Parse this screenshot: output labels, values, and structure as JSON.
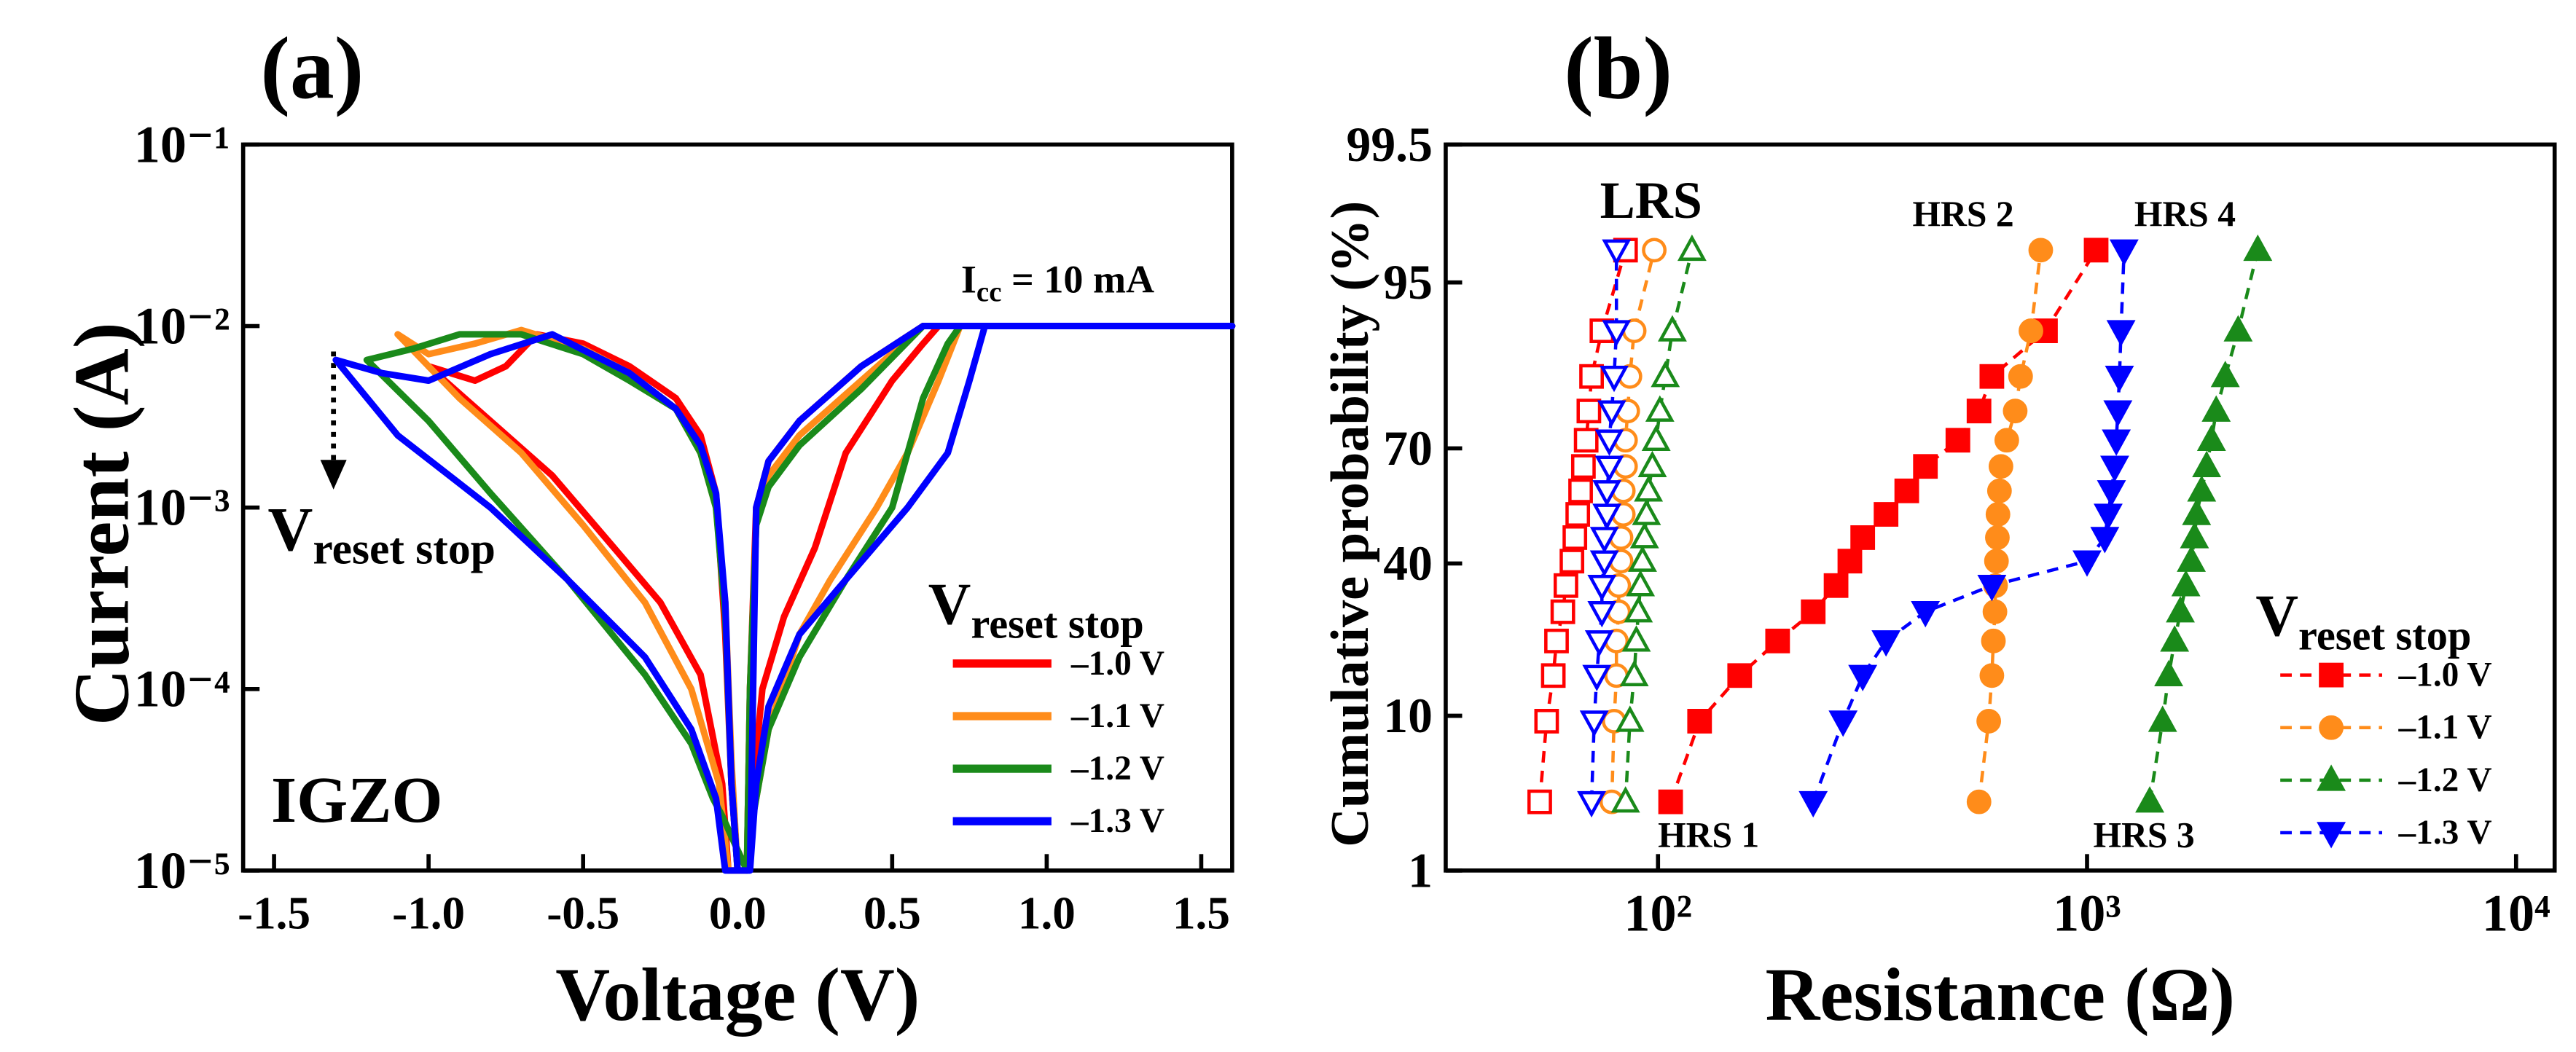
{
  "chart_data": [
    {
      "type": "line",
      "xlabel": "Voltage (V)",
      "ylabel": "Current (A)",
      "xscale": "linear",
      "yscale": "log",
      "xlim": [
        -1.6,
        1.6
      ],
      "xticks": [
        -1.5,
        {
          "value": -1,
          "label": "-1.0"
        },
        -0.5,
        {
          "value": 0,
          "label": "0.0"
        },
        0.5,
        {
          "value": 1,
          "label": "1.0"
        },
        1.5
      ],
      "ylim": [
        1e-05,
        0.1
      ],
      "yticks": [
        {
          "value": 1e-05,
          "label": "10⁻⁵"
        },
        {
          "value": 0.0001,
          "label": "10⁻⁴"
        },
        {
          "value": 0.001,
          "label": "10⁻³"
        },
        {
          "value": 0.01,
          "label": "10⁻²"
        },
        {
          "value": 0.1,
          "label": "10⁻¹"
        }
      ],
      "annotations": [
        {
          "text": "(a)"
        },
        {
          "text": "I",
          "sub": "cc",
          "tail": " = 10 mA"
        },
        {
          "text": "V",
          "sub": "reset stop"
        },
        {
          "text": "IGZO"
        }
      ],
      "legend_title": {
        "text": "V",
        "sub": "reset stop"
      },
      "legend_position": "lower right",
      "series": [
        {
          "name": "–1.0 V",
          "color": "#ff0000",
          "x": [
            0.0,
            -0.02,
            -0.04,
            -0.07,
            -0.12,
            -0.2,
            -0.35,
            -0.5,
            -0.65,
            -0.75,
            -0.85,
            -1.0,
            -0.8,
            -0.6,
            -0.4,
            -0.25,
            -0.12,
            -0.05,
            -0.03,
            0.03,
            0.05,
            0.08,
            0.15,
            0.25,
            0.35,
            0.5,
            0.6,
            0.65,
            1.6,
            0.6,
            0.4,
            0.2,
            0.1,
            0.06,
            0.04,
            0.03
          ],
          "values": [
            1e-05,
            3e-05,
            0.0002,
            0.0012,
            0.0025,
            0.004,
            0.006,
            0.008,
            0.009,
            0.006,
            0.005,
            0.006,
            0.003,
            0.0015,
            0.0006,
            0.0003,
            0.00012,
            3e-05,
            1e-05,
            1e-05,
            3e-05,
            0.0001,
            0.00025,
            0.0006,
            0.002,
            0.005,
            0.008,
            0.01,
            0.01,
            0.01,
            0.006,
            0.003,
            0.0018,
            0.001,
            0.0001,
            1e-05
          ]
        },
        {
          "name": "–1.1 V",
          "color": "#ff8c1a",
          "x": [
            0.0,
            -0.02,
            -0.04,
            -0.07,
            -0.12,
            -0.2,
            -0.35,
            -0.5,
            -0.7,
            -0.85,
            -1.0,
            -1.1,
            -0.9,
            -0.7,
            -0.5,
            -0.3,
            -0.15,
            -0.06,
            -0.03,
            0.03,
            0.05,
            0.1,
            0.2,
            0.3,
            0.45,
            0.55,
            0.65,
            0.72,
            1.6,
            0.6,
            0.4,
            0.2,
            0.1,
            0.06,
            0.04,
            0.03
          ],
          "values": [
            1e-05,
            4e-05,
            0.0003,
            0.001,
            0.002,
            0.0035,
            0.0055,
            0.0075,
            0.0095,
            0.008,
            0.007,
            0.009,
            0.004,
            0.002,
            0.0008,
            0.0003,
            0.0001,
            3e-05,
            1e-05,
            1e-05,
            2e-05,
            6e-05,
            0.0002,
            0.0004,
            0.001,
            0.002,
            0.005,
            0.01,
            0.01,
            0.01,
            0.005,
            0.0025,
            0.0015,
            0.0008,
            0.0001,
            1e-05
          ]
        },
        {
          "name": "–1.2 V",
          "color": "#1a8a1a",
          "x": [
            0.0,
            -0.02,
            -0.04,
            -0.07,
            -0.12,
            -0.2,
            -0.35,
            -0.5,
            -0.7,
            -0.9,
            -1.05,
            -1.2,
            -1.0,
            -0.8,
            -0.55,
            -0.3,
            -0.15,
            -0.08,
            -0.05,
            0.03,
            0.05,
            0.1,
            0.2,
            0.35,
            0.5,
            0.6,
            0.68,
            0.72,
            1.6,
            0.6,
            0.4,
            0.2,
            0.1,
            0.06,
            0.04,
            0.03
          ],
          "values": [
            1e-05,
            3e-05,
            0.00025,
            0.001,
            0.002,
            0.0035,
            0.005,
            0.007,
            0.009,
            0.009,
            0.0075,
            0.0065,
            0.003,
            0.0012,
            0.0004,
            0.00012,
            5e-05,
            2.5e-05,
            2e-05,
            1e-05,
            2e-05,
            6e-05,
            0.00015,
            0.0004,
            0.001,
            0.004,
            0.008,
            0.01,
            0.01,
            0.01,
            0.0045,
            0.0022,
            0.0013,
            0.0008,
            0.0001,
            1e-05
          ]
        },
        {
          "name": "–1.3 V",
          "color": "#0000ff",
          "x": [
            0.0,
            -0.02,
            -0.04,
            -0.07,
            -0.12,
            -0.2,
            -0.35,
            -0.6,
            -0.8,
            -1.0,
            -1.15,
            -1.3,
            -1.1,
            -0.8,
            -0.55,
            -0.3,
            -0.15,
            -0.07,
            -0.04,
            0.04,
            0.06,
            0.1,
            0.2,
            0.35,
            0.55,
            0.68,
            0.75,
            0.8,
            1.6,
            0.6,
            0.4,
            0.2,
            0.1,
            0.06,
            0.05,
            0.04
          ],
          "values": [
            1e-05,
            3e-05,
            0.0003,
            0.0012,
            0.0022,
            0.0035,
            0.0055,
            0.009,
            0.007,
            0.005,
            0.0055,
            0.0065,
            0.0025,
            0.001,
            0.0004,
            0.00015,
            6e-05,
            2.5e-05,
            1e-05,
            1e-05,
            3e-05,
            8e-05,
            0.0002,
            0.0004,
            0.001,
            0.002,
            0.005,
            0.01,
            0.01,
            0.01,
            0.006,
            0.003,
            0.0018,
            0.001,
            0.0001,
            1e-05
          ]
        }
      ]
    },
    {
      "type": "scatter",
      "xlabel": "Resistance (Ω)",
      "ylabel": "Cumulative probability (%)",
      "xscale": "log",
      "yscale": "probability",
      "xlim": [
        32,
        12300
      ],
      "xticks": [
        {
          "value": 100,
          "label": "10²"
        },
        {
          "value": 1000,
          "label": "10³"
        },
        {
          "value": 10000,
          "label": "10⁴"
        }
      ],
      "ylim": [
        1,
        99.5
      ],
      "yticks": [
        1,
        10,
        40,
        70,
        95,
        99.5
      ],
      "line_style": "dashed",
      "annotations": [
        {
          "text": "(b)"
        },
        {
          "text": "LRS"
        },
        {
          "text": "HRS 1",
          "color": "#ff0000"
        },
        {
          "text": "HRS 2",
          "color": "#ff8c1a"
        },
        {
          "text": "HRS 3",
          "color": "#1a8a1a"
        },
        {
          "text": "HRS 4",
          "color": "#0000ff"
        }
      ],
      "legend_title": {
        "text": "V",
        "sub": "reset stop"
      },
      "legend_position": "lower right",
      "series": [
        {
          "color": "#ff0000",
          "marker": "square",
          "filled": false,
          "x": [
            53,
            55,
            57,
            58,
            60,
            61,
            63,
            64,
            65,
            66,
            67,
            68,
            69,
            70,
            74,
            84
          ],
          "values": [
            3.125,
            9.375,
            15.625,
            21.875,
            28.125,
            34.375,
            40.625,
            46.875,
            53.125,
            59.375,
            65.625,
            71.875,
            78.125,
            84.375,
            90.625,
            96.875
          ]
        },
        {
          "color": "#ff8c1a",
          "marker": "circle",
          "filled": false,
          "x": [
            78,
            79,
            80,
            80,
            81,
            81,
            82,
            82,
            83,
            83,
            84,
            84,
            85,
            86,
            88,
            98
          ],
          "values": [
            3.125,
            9.375,
            15.625,
            21.875,
            28.125,
            34.375,
            40.625,
            46.875,
            53.125,
            59.375,
            65.625,
            71.875,
            78.125,
            84.375,
            90.625,
            96.875
          ]
        },
        {
          "color": "#1a8a1a",
          "marker": "up",
          "filled": false,
          "x": [
            84,
            86,
            88,
            89,
            90,
            91,
            92,
            93,
            94,
            95,
            97,
            99,
            101,
            104,
            108,
            120
          ],
          "values": [
            3.125,
            9.375,
            15.625,
            21.875,
            28.125,
            34.375,
            40.625,
            46.875,
            53.125,
            59.375,
            65.625,
            71.875,
            78.125,
            84.375,
            90.625,
            96.875
          ]
        },
        {
          "color": "#0000ff",
          "marker": "down",
          "filled": false,
          "x": [
            70,
            71,
            72,
            73,
            74,
            74,
            75,
            75,
            76,
            76,
            77,
            77,
            78,
            79,
            80,
            80
          ],
          "values": [
            3.125,
            9.375,
            15.625,
            21.875,
            28.125,
            34.375,
            40.625,
            46.875,
            53.125,
            59.375,
            65.625,
            71.875,
            78.125,
            84.375,
            90.625,
            96.875
          ]
        },
        {
          "name": "–1.0 V",
          "color": "#ff0000",
          "marker": "square",
          "filled": true,
          "x": [
            107,
            125,
            155,
            190,
            230,
            260,
            280,
            300,
            340,
            380,
            420,
            500,
            560,
            600,
            800,
            1050
          ],
          "values": [
            3.125,
            9.375,
            15.625,
            21.875,
            28.125,
            34.375,
            40.625,
            46.875,
            53.125,
            59.375,
            65.625,
            71.875,
            78.125,
            84.375,
            90.625,
            96.875
          ]
        },
        {
          "name": "–1.1 V",
          "color": "#ff8c1a",
          "marker": "circle",
          "filled": true,
          "x": [
            560,
            590,
            600,
            605,
            610,
            612,
            615,
            618,
            620,
            625,
            630,
            650,
            680,
            700,
            740,
            780
          ],
          "values": [
            3.125,
            9.375,
            15.625,
            21.875,
            28.125,
            34.375,
            40.625,
            46.875,
            53.125,
            59.375,
            65.625,
            71.875,
            78.125,
            84.375,
            90.625,
            96.875
          ]
        },
        {
          "name": "–1.2 V",
          "color": "#1a8a1a",
          "marker": "up",
          "filled": true,
          "x": [
            1400,
            1500,
            1550,
            1600,
            1650,
            1700,
            1750,
            1780,
            1800,
            1850,
            1900,
            1950,
            2000,
            2100,
            2250,
            2500
          ],
          "values": [
            3.125,
            9.375,
            15.625,
            21.875,
            28.125,
            34.375,
            40.625,
            46.875,
            53.125,
            59.375,
            65.625,
            71.875,
            78.125,
            84.375,
            90.625,
            96.875
          ]
        },
        {
          "name": "–1.3 V",
          "color": "#0000ff",
          "marker": "down",
          "filled": true,
          "x": [
            230,
            270,
            300,
            340,
            420,
            600,
            1000,
            1100,
            1120,
            1140,
            1160,
            1170,
            1180,
            1190,
            1200,
            1220
          ],
          "values": [
            3.125,
            9.375,
            15.625,
            21.875,
            28.125,
            34.375,
            40.625,
            46.875,
            53.125,
            59.375,
            65.625,
            71.875,
            78.125,
            84.375,
            90.625,
            96.875
          ]
        }
      ]
    }
  ]
}
